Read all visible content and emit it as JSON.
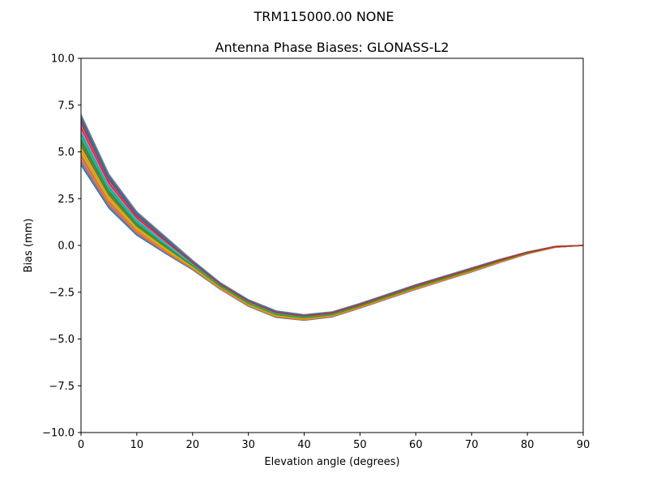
{
  "chart_data": {
    "type": "line",
    "suptitle": "TRM115000.00    NONE",
    "title": "Antenna Phase Biases: GLONASS-L2",
    "xlabel": "Elevation angle (degrees)",
    "ylabel": "Bias (mm)",
    "xlim": [
      0,
      90
    ],
    "ylim": [
      -10,
      10
    ],
    "xticks": [
      0,
      10,
      20,
      30,
      40,
      50,
      60,
      70,
      80,
      90
    ],
    "yticks": [
      -10.0,
      -7.5,
      -5.0,
      -2.5,
      0.0,
      2.5,
      5.0,
      7.5,
      10.0
    ],
    "ytick_labels": [
      "−10.0",
      "−7.5",
      "−5.0",
      "−2.5",
      "0.0",
      "2.5",
      "5.0",
      "7.5",
      "10.0"
    ],
    "xtick_labels": [
      "0",
      "10",
      "20",
      "30",
      "40",
      "50",
      "60",
      "70",
      "80",
      "90"
    ],
    "grid": false,
    "x": [
      0,
      5,
      10,
      15,
      20,
      25,
      30,
      35,
      40,
      45,
      50,
      55,
      60,
      65,
      70,
      75,
      80,
      85,
      90
    ],
    "series_upper": [
      7.0,
      3.8,
      1.8,
      0.5,
      -0.8,
      -2.0,
      -2.9,
      -3.5,
      -3.7,
      -3.55,
      -3.1,
      -2.6,
      -2.1,
      -1.65,
      -1.2,
      -0.75,
      -0.35,
      -0.05,
      0.0
    ],
    "series_lower": [
      4.3,
      2.0,
      0.55,
      -0.4,
      -1.3,
      -2.35,
      -3.25,
      -3.85,
      -4.0,
      -3.82,
      -3.35,
      -2.85,
      -2.35,
      -1.88,
      -1.42,
      -0.92,
      -0.45,
      -0.1,
      0.0
    ],
    "series_count": 24,
    "colors": [
      "#1f77b4",
      "#ff7f0e",
      "#2ca02c",
      "#d62728",
      "#9467bd",
      "#8c564b",
      "#e377c2",
      "#7f7f7f",
      "#bcbd22",
      "#17becf"
    ]
  }
}
